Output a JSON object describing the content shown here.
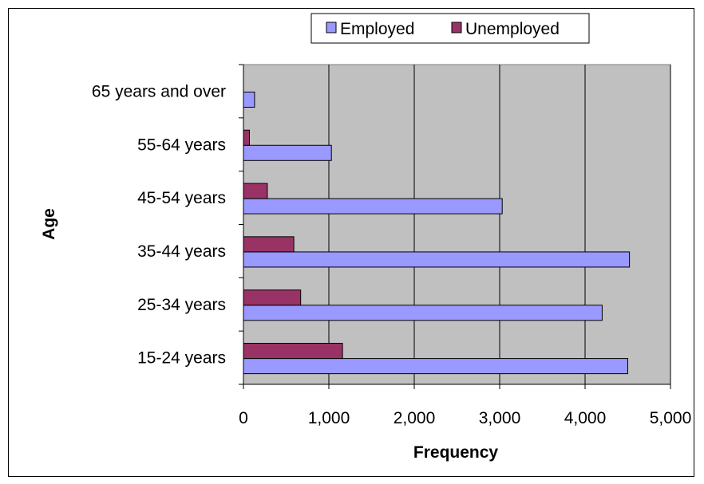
{
  "chart_data": {
    "type": "bar",
    "orientation": "horizontal",
    "categories": [
      "15-24 years",
      "25-34 years",
      "35-44 years",
      "45-54 years",
      "55-64 years",
      "65 years and over"
    ],
    "series": [
      {
        "name": "Employed",
        "values": [
          4500,
          4200,
          4520,
          3030,
          1030,
          130
        ],
        "color": "#9999ff"
      },
      {
        "name": "Unemployed",
        "values": [
          1160,
          670,
          590,
          280,
          70,
          0
        ],
        "color": "#993366"
      }
    ],
    "xlabel": "Frequency",
    "ylabel": "Age",
    "xlim": [
      0,
      5000
    ],
    "xticks": [
      0,
      1000,
      2000,
      3000,
      4000,
      5000
    ],
    "xtick_labels": [
      "0",
      "1,000",
      "2,000",
      "3,000",
      "4,000",
      "5,000"
    ],
    "grid": "vertical",
    "legend": "top",
    "plot_background": "#c0c0c0"
  }
}
